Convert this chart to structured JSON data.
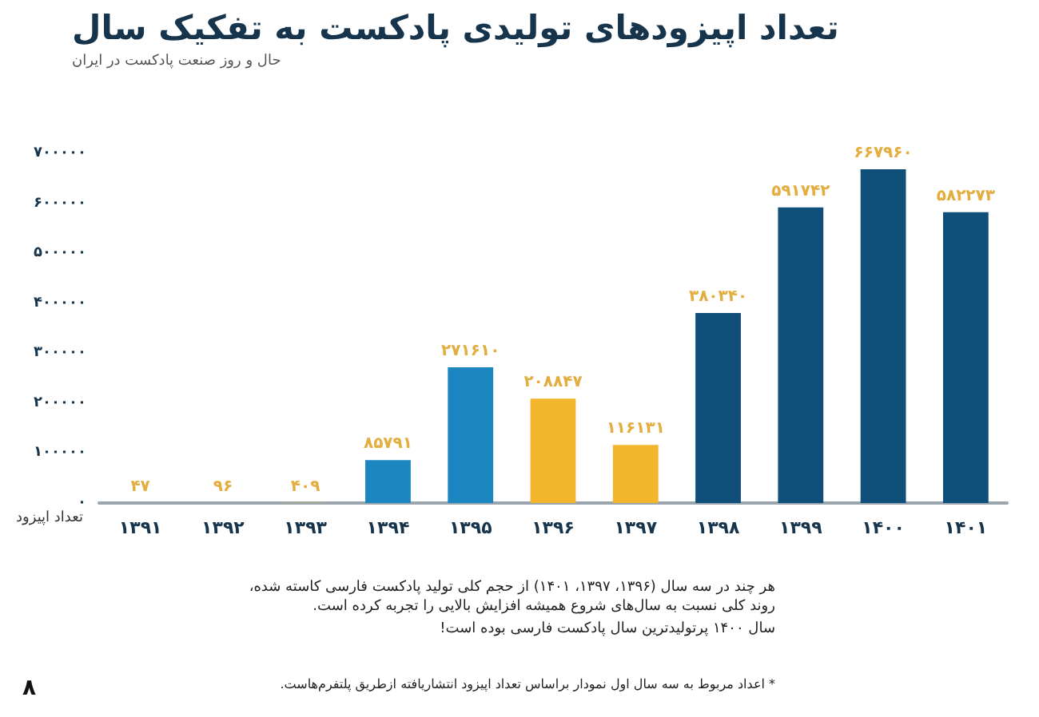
{
  "chart_data": {
    "type": "bar",
    "title": "تعداد اپیزودهای تولیدی پادکست به تفکیک سال",
    "subtitle": "حال و روز صنعت پادکست در ایران",
    "ylabel": "تعداد اپیزود",
    "categories": [
      "۱۳۹۱",
      "۱۳۹۲",
      "۱۳۹۳",
      "۱۳۹۴",
      "۱۳۹۵",
      "۱۳۹۶",
      "۱۳۹۷",
      "۱۳۹۸",
      "۱۳۹۹",
      "۱۴۰۰",
      "۱۴۰۱"
    ],
    "values": [
      47,
      96,
      409,
      85791,
      271610,
      208847,
      116131,
      380340,
      591742,
      667960,
      582273
    ],
    "value_labels": [
      "۴۷",
      "۹۶",
      "۴۰۹",
      "۸۵۷۹۱",
      "۲۷۱۶۱۰",
      "۲۰۸۸۴۷",
      "۱۱۶۱۳۱",
      "۳۸۰۳۴۰",
      "۵۹۱۷۴۲",
      "۶۶۷۹۶۰",
      "۵۸۲۲۷۳"
    ],
    "colors": [
      "#0d3a5c",
      "#0d3a5c",
      "#f2b52c",
      "#1b86bf",
      "#1b86bf",
      "#f2b52c",
      "#f2b52c",
      "#0f4f7a",
      "#0f4f7a",
      "#0f4f7a",
      "#0f4f7a"
    ],
    "ylim": [
      0,
      700000
    ],
    "yticks": [
      {
        "value": 0,
        "label": "۰"
      },
      {
        "value": 100000,
        "label": "۱۰۰۰۰۰"
      },
      {
        "value": 200000,
        "label": "۲۰۰۰۰۰"
      },
      {
        "value": 300000,
        "label": "۳۰۰۰۰۰"
      },
      {
        "value": 400000,
        "label": "۴۰۰۰۰۰"
      },
      {
        "value": 500000,
        "label": "۵۰۰۰۰۰"
      },
      {
        "value": 600000,
        "label": "۶۰۰۰۰۰"
      },
      {
        "value": 700000,
        "label": "۷۰۰۰۰۰"
      }
    ],
    "annotations": [
      "هر چند در سه سال (۱۳۹۶، ۱۳۹۷، ۱۴۰۱) از حجم کلی تولید پادکست فارسی کاسته شده، روند کلی نسبت به سال‌های شروع همیشه افزایش بالایی را تجربه کرده است.",
      "سال ۱۴۰۰ پرتولیدترین سال پادکست فارسی بوده است!",
      "* اعداد مربوط به سه سال اول نمودار براساس تعداد اپیزود انتشاریافته ازطریق پلتفرم‌هاست.",
      "۸"
    ]
  }
}
